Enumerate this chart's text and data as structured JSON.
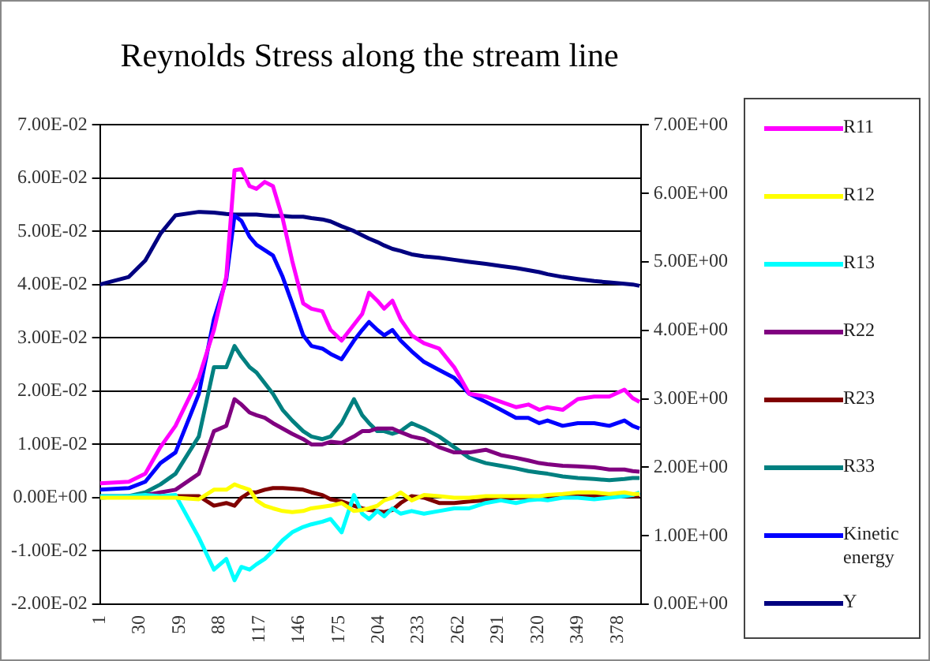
{
  "chart_data": {
    "type": "line",
    "title": "Reynolds Stress along the stream line",
    "x": [
      1,
      22,
      34,
      45,
      56,
      73,
      84,
      93,
      99,
      104,
      110,
      115,
      121,
      127,
      134,
      141,
      149,
      155,
      163,
      169,
      177,
      186,
      192,
      197,
      203,
      208,
      214,
      220,
      228,
      237,
      248,
      259,
      270,
      282,
      293,
      304,
      313,
      321,
      327,
      338,
      349,
      361,
      372,
      383,
      389,
      394
    ],
    "xlim": [
      1,
      395
    ],
    "xticks": [
      1,
      30,
      59,
      88,
      117,
      146,
      175,
      204,
      233,
      262,
      291,
      320,
      349,
      378
    ],
    "ylim": [
      -0.02,
      0.07
    ],
    "yticks": [
      {
        "value": -0.02,
        "label": "-2.00E-02"
      },
      {
        "value": -0.01,
        "label": "-1.00E-02"
      },
      {
        "value": 0,
        "label": "0.00E+00"
      },
      {
        "value": 0.01,
        "label": "1.00E-02"
      },
      {
        "value": 0.02,
        "label": "2.00E-02"
      },
      {
        "value": 0.03,
        "label": "3.00E-02"
      },
      {
        "value": 0.04,
        "label": "4.00E-02"
      },
      {
        "value": 0.05,
        "label": "5.00E-02"
      },
      {
        "value": 0.06,
        "label": "6.00E-02"
      },
      {
        "value": 0.07,
        "label": "7.00E-02"
      }
    ],
    "y2lim": [
      0,
      7
    ],
    "y2ticks": [
      {
        "value": 0,
        "label": "0.00E+00"
      },
      {
        "value": 1,
        "label": "1.00E+00"
      },
      {
        "value": 2,
        "label": "2.00E+00"
      },
      {
        "value": 3,
        "label": "3.00E+00"
      },
      {
        "value": 4,
        "label": "4.00E+00"
      },
      {
        "value": 5,
        "label": "5.00E+00"
      },
      {
        "value": 6,
        "label": "6.00E+00"
      },
      {
        "value": 7,
        "label": "7.00E+00"
      }
    ],
    "grid": "y",
    "legend": "right",
    "series": [
      {
        "name": "R11",
        "color": "#ff00ff",
        "values": [
          0.0027,
          0.003,
          0.0045,
          0.0095,
          0.0135,
          0.0225,
          0.0315,
          0.0415,
          0.0615,
          0.0617,
          0.0585,
          0.058,
          0.0593,
          0.0585,
          0.0525,
          0.0445,
          0.0365,
          0.0355,
          0.035,
          0.0315,
          0.0295,
          0.0325,
          0.0345,
          0.0385,
          0.037,
          0.0355,
          0.037,
          0.0335,
          0.0305,
          0.029,
          0.028,
          0.0245,
          0.0195,
          0.019,
          0.018,
          0.017,
          0.0175,
          0.0165,
          0.017,
          0.0165,
          0.0185,
          0.019,
          0.019,
          0.0203,
          0.0187,
          0.018
        ]
      },
      {
        "name": "R12",
        "color": "#ffff00",
        "values": [
          0,
          0,
          0,
          0,
          0,
          -0.0003,
          0.0015,
          0.0015,
          0.0025,
          0.002,
          0.0015,
          -0.0005,
          -0.0015,
          -0.002,
          -0.0025,
          -0.0027,
          -0.0025,
          -0.002,
          -0.0017,
          -0.0015,
          -0.001,
          -0.0025,
          -0.0023,
          -0.002,
          -0.0015,
          -0.0005,
          0,
          0.001,
          -0.0005,
          0.0005,
          0.0003,
          0,
          0,
          0.0003,
          0.0003,
          0.0003,
          0.0003,
          0.0003,
          0.0005,
          0.0007,
          0.001,
          0.001,
          0.0007,
          0.001,
          0.0007,
          0.0007
        ]
      },
      {
        "name": "R13",
        "color": "#00ffff",
        "values": [
          0.0003,
          0.0003,
          0.0005,
          0.0003,
          0.0005,
          -0.0075,
          -0.0135,
          -0.0115,
          -0.0155,
          -0.013,
          -0.0135,
          -0.0125,
          -0.0115,
          -0.01,
          -0.008,
          -0.0065,
          -0.0055,
          -0.005,
          -0.0045,
          -0.004,
          -0.0065,
          0.0005,
          -0.003,
          -0.004,
          -0.0025,
          -0.0035,
          -0.002,
          -0.003,
          -0.0025,
          -0.003,
          -0.0025,
          -0.002,
          -0.002,
          -0.001,
          -0.0005,
          -0.001,
          -0.0005,
          -0.0003,
          -0.0005,
          0,
          0,
          -0.0003,
          0,
          0.0003,
          0.0005,
          0.001
        ]
      },
      {
        "name": "R22",
        "color": "#800080",
        "values": [
          0.0003,
          0.0003,
          0.0005,
          0.001,
          0.0015,
          0.0045,
          0.0125,
          0.0135,
          0.0185,
          0.0175,
          0.016,
          0.0155,
          0.015,
          0.014,
          0.013,
          0.012,
          0.011,
          0.01,
          0.01,
          0.0105,
          0.0103,
          0.0115,
          0.0125,
          0.0125,
          0.013,
          0.013,
          0.013,
          0.0123,
          0.0115,
          0.011,
          0.0095,
          0.0085,
          0.0085,
          0.009,
          0.008,
          0.0075,
          0.007,
          0.0065,
          0.0063,
          0.006,
          0.0059,
          0.0057,
          0.0053,
          0.0053,
          0.005,
          0.0049
        ]
      },
      {
        "name": "R23",
        "color": "#800000",
        "values": [
          null,
          null,
          null,
          null,
          0.0003,
          0.0003,
          -0.0015,
          -0.001,
          -0.0015,
          0,
          0.001,
          0.001,
          0.0015,
          0.0018,
          0.0018,
          0.0017,
          0.0015,
          0.001,
          0.0005,
          -0.0003,
          -0.0007,
          -0.0015,
          -0.002,
          -0.0023,
          -0.0025,
          -0.0027,
          -0.0023,
          -0.001,
          0.0003,
          0,
          -0.001,
          -0.001,
          -0.0007,
          -0.0005,
          -0.0003,
          0,
          0,
          0,
          0.0001,
          0.0002,
          0.0003,
          0.0003,
          0.0003,
          0.0003,
          0.0003,
          0.0003
        ]
      },
      {
        "name": "R33",
        "color": "#008080",
        "values": [
          0,
          0.0003,
          0.001,
          0.0025,
          0.0045,
          0.0115,
          0.0245,
          0.0245,
          0.0285,
          0.0265,
          0.0245,
          0.0235,
          0.0215,
          0.0195,
          0.0165,
          0.0145,
          0.0125,
          0.0115,
          0.011,
          0.0115,
          0.014,
          0.0185,
          0.0155,
          0.014,
          0.0125,
          0.0125,
          0.012,
          0.0125,
          0.014,
          0.013,
          0.0115,
          0.0095,
          0.0075,
          0.0065,
          0.006,
          0.0055,
          0.005,
          0.0047,
          0.0045,
          0.004,
          0.0037,
          0.0035,
          0.0033,
          0.0035,
          0.0037,
          0.0037
        ]
      },
      {
        "name": "Kinetic energy",
        "color": "#0000ff",
        "values": [
          0.0015,
          0.0018,
          0.003,
          0.0065,
          0.0085,
          0.0195,
          0.0335,
          0.041,
          0.053,
          0.052,
          0.049,
          0.0475,
          0.0465,
          0.0455,
          0.0415,
          0.0365,
          0.0305,
          0.0285,
          0.028,
          0.027,
          0.026,
          0.0295,
          0.0315,
          0.033,
          0.0315,
          0.0305,
          0.0315,
          0.0295,
          0.0275,
          0.0255,
          0.024,
          0.0225,
          0.0195,
          0.018,
          0.0165,
          0.015,
          0.015,
          0.014,
          0.0145,
          0.0135,
          0.014,
          0.014,
          0.0135,
          0.0145,
          0.0135,
          0.013
        ]
      },
      {
        "name": "Y",
        "color": "#000080",
        "axis": "y2",
        "values": [
          4.67,
          4.78,
          5.02,
          5.41,
          5.68,
          5.73,
          5.72,
          5.7,
          5.69,
          5.69,
          5.69,
          5.69,
          5.68,
          5.67,
          5.67,
          5.66,
          5.66,
          5.64,
          5.62,
          5.59,
          5.52,
          5.45,
          5.39,
          5.34,
          5.29,
          5.24,
          5.19,
          5.16,
          5.11,
          5.08,
          5.06,
          5.03,
          5,
          4.97,
          4.94,
          4.91,
          4.88,
          4.85,
          4.82,
          4.78,
          4.75,
          4.72,
          4.7,
          4.68,
          4.67,
          4.65
        ]
      }
    ]
  }
}
